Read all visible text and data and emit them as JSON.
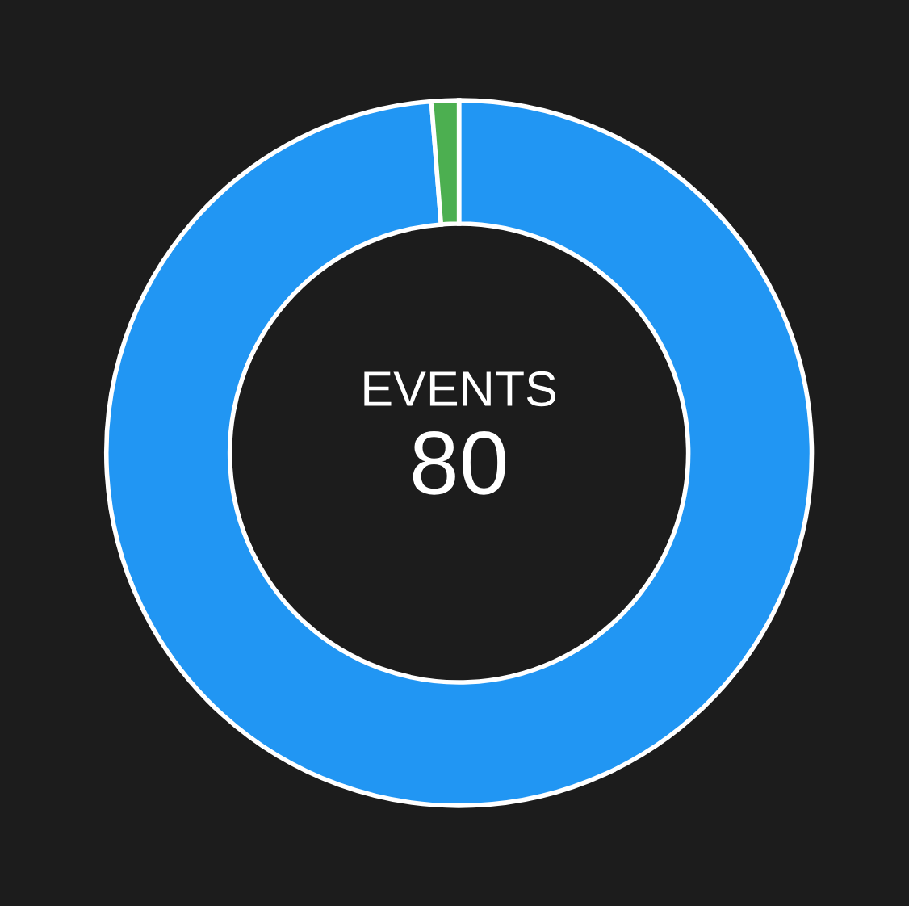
{
  "chart_data": {
    "type": "donut",
    "categories": [
      null,
      null
    ],
    "values": [
      98.75,
      1.25
    ],
    "colors": [
      "#2196f3",
      "#4caf50"
    ],
    "annotations": [
      "EVENTS",
      "80"
    ]
  }
}
